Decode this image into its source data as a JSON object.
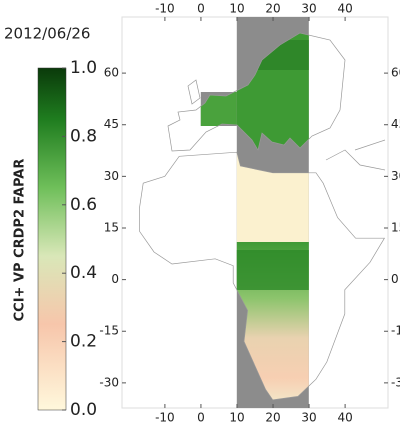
{
  "date": "2012/06/26",
  "colorbar": {
    "label": "CCI+ VP CRDP2 FAPAR",
    "lim": [
      0,
      1
    ],
    "ticks": [
      {
        "value": 0,
        "label": "0.0"
      },
      0.2,
      0.4,
      0.6,
      0.8,
      {
        "value": 1,
        "label": "1.0"
      }
    ]
  },
  "map": {
    "xlim": [
      -21.9,
      51.9
    ],
    "ylim": [
      -37.3,
      76.3
    ],
    "xticks": [
      -10,
      0,
      10,
      20,
      30,
      40
    ],
    "yticks": [
      60,
      45,
      30,
      15,
      0,
      -15,
      -30
    ]
  }
}
